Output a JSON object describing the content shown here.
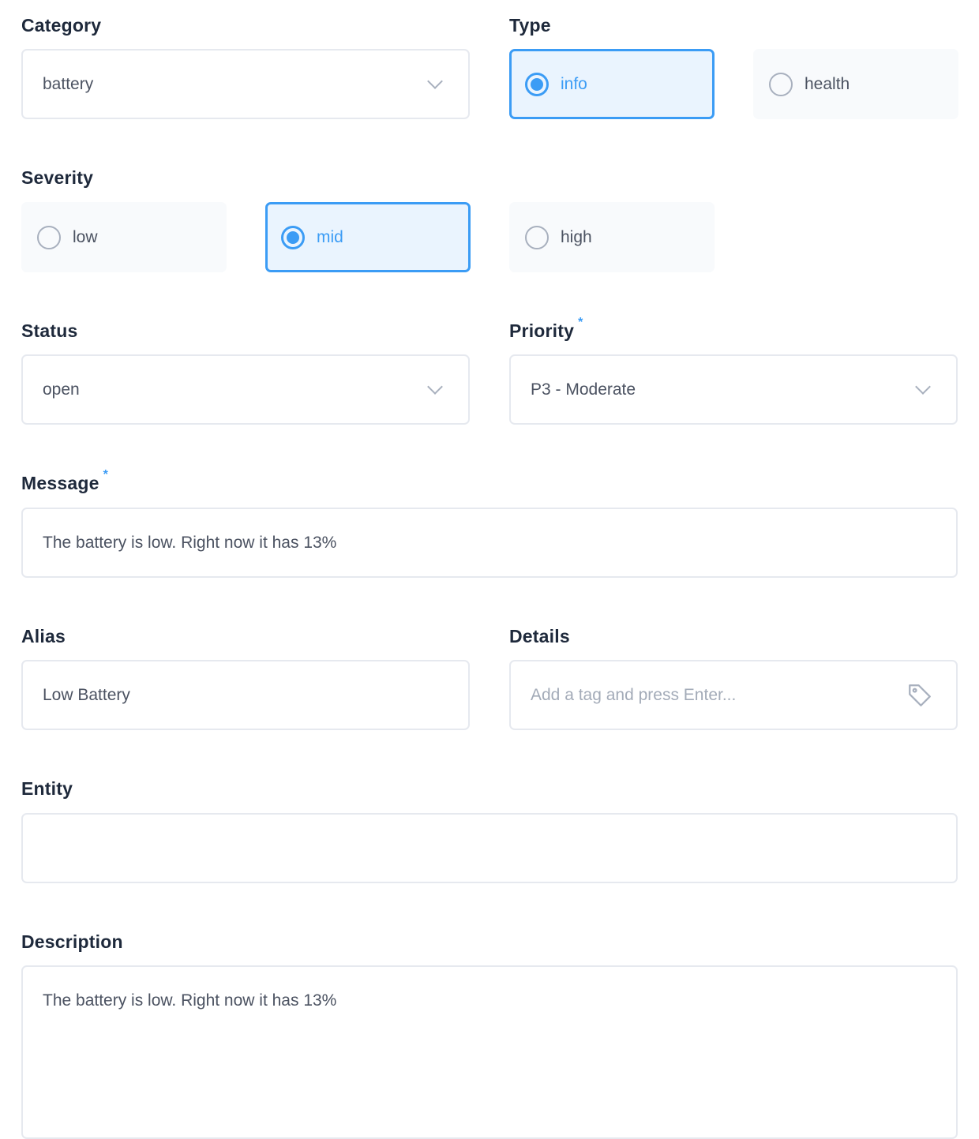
{
  "category": {
    "label": "Category",
    "value": "battery"
  },
  "type": {
    "label": "Type",
    "options": [
      {
        "label": "info",
        "selected": true
      },
      {
        "label": "health",
        "selected": false
      }
    ]
  },
  "severity": {
    "label": "Severity",
    "options": [
      {
        "label": "low",
        "selected": false
      },
      {
        "label": "mid",
        "selected": true
      },
      {
        "label": "high",
        "selected": false
      }
    ]
  },
  "status": {
    "label": "Status",
    "value": "open"
  },
  "priority": {
    "label": "Priority",
    "required_mark": "*",
    "value": "P3 - Moderate"
  },
  "message": {
    "label": "Message",
    "required_mark": "*",
    "value": "The battery is low. Right now it has 13%"
  },
  "alias": {
    "label": "Alias",
    "value": "Low Battery"
  },
  "details": {
    "label": "Details",
    "placeholder": "Add a tag and press Enter...",
    "icon": "tag-icon"
  },
  "entity": {
    "label": "Entity",
    "value": ""
  },
  "description": {
    "label": "Description",
    "value": "The battery is low. Right now it has 13%"
  },
  "colors": {
    "accent": "#3b9cf5",
    "label": "#1e293b",
    "text": "#4b5261",
    "border": "#e6e9ef"
  }
}
